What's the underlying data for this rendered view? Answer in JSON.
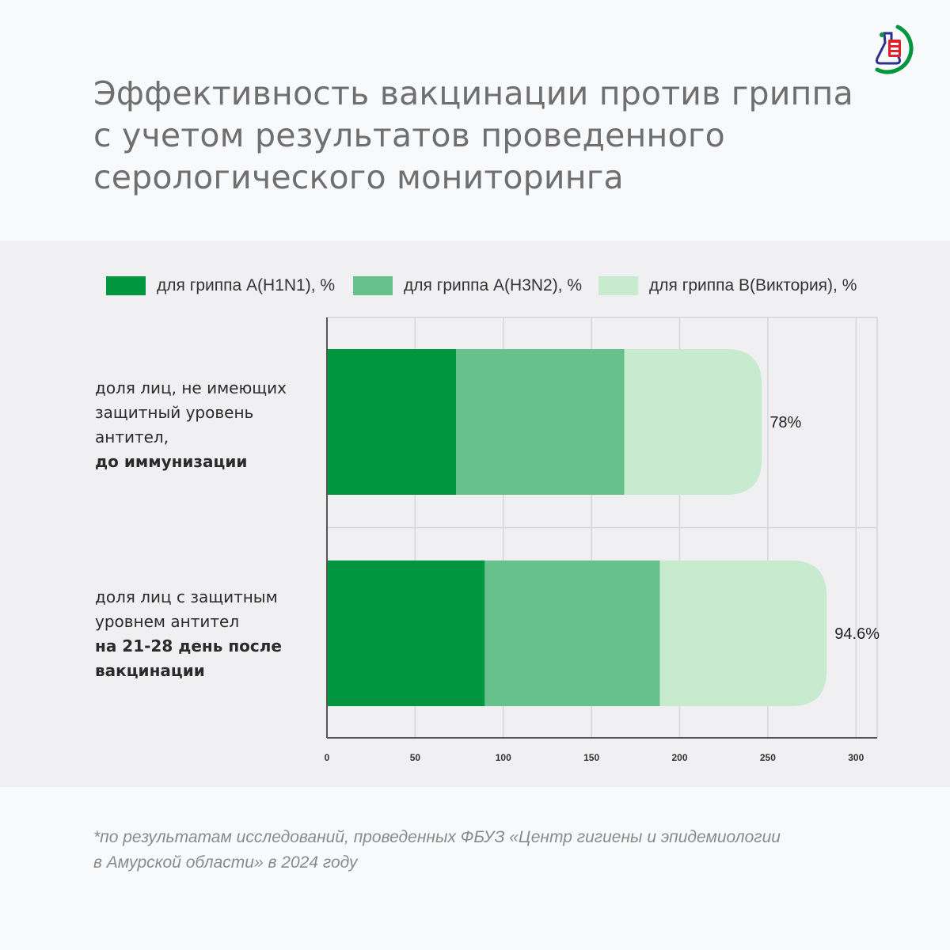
{
  "title_lines": [
    "Эффективность вакцинации против гриппа",
    "с учетом результатов проведенного",
    "серологического мониторинга"
  ],
  "logo": {
    "icon": "flask-logo-icon",
    "colors": [
      "#00963f",
      "#e0202a",
      "#2b2f8f"
    ]
  },
  "chart_data": {
    "type": "bar",
    "orientation": "horizontal",
    "stacked": true,
    "categories": [
      {
        "lines": [
          "доля лиц, не имеющих",
          "защитный уровень",
          "антител,"
        ],
        "bold_lines": [
          "до иммунизации"
        ]
      },
      {
        "lines": [
          "доля лиц с защитным",
          "уровнем антител"
        ],
        "bold_lines": [
          "на 21-28 день после",
          "вакцинации"
        ]
      }
    ],
    "series": [
      {
        "name": "для гриппа А(H1N1), %",
        "color": "#00963f",
        "values": [
          73.3,
          89.5
        ],
        "labels": [
          "73.3%",
          "89.5%"
        ]
      },
      {
        "name": "для гриппа А(H3N2), %",
        "color": "#66c28a",
        "values": [
          95.3,
          99.3
        ],
        "labels": [
          "95.3%",
          "99.3%"
        ]
      },
      {
        "name": "для гриппа В(Виктория), %",
        "color": "#c8ebd0",
        "values": [
          78,
          94.6
        ],
        "labels": [
          "78%",
          "94.6%"
        ]
      }
    ],
    "xlim": [
      0,
      312
    ],
    "xticks": [
      0,
      50,
      100,
      150,
      200,
      250,
      300
    ],
    "xtick_labels": [
      "0",
      "50",
      "100",
      "150",
      "200",
      "250",
      "300"
    ],
    "grid": true,
    "legend_position": "top"
  },
  "footnote_lines": [
    "*по результатам исследований, проведенных ФБУЗ «Центр гигиены и эпидемиологии",
    "в Амурской области» в 2024 году"
  ]
}
